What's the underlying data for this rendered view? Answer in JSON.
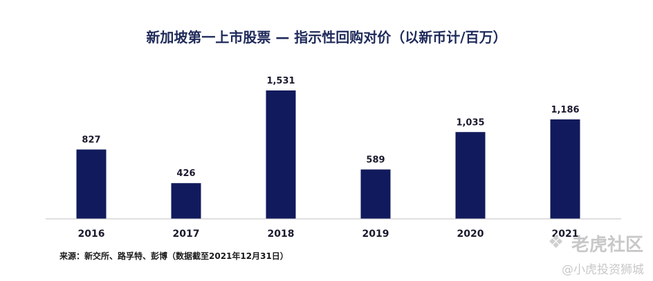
{
  "chart_data": {
    "type": "bar",
    "title": "新加坡第一上市股票 — 指示性回购对价（以新币计/百万）",
    "categories": [
      "2016",
      "2017",
      "2018",
      "2019",
      "2020",
      "2021"
    ],
    "values": [
      827,
      426,
      1531,
      589,
      1035,
      1186
    ],
    "value_labels": [
      "827",
      "426",
      "1,531",
      "589",
      "1,035",
      "1,186"
    ],
    "ylim": [
      0,
      1531
    ],
    "grid": false,
    "legend": "none",
    "bar_color": "#111a5c",
    "axis_color": "#bfbfbf"
  },
  "source_note": "来源：新交所、路孚特、彭博（数据截至2021年12月31日）",
  "watermark": {
    "logo_icon": "tiger-paw-icon",
    "top": "老虎社区",
    "bottom": "@小虎投资狮城"
  }
}
